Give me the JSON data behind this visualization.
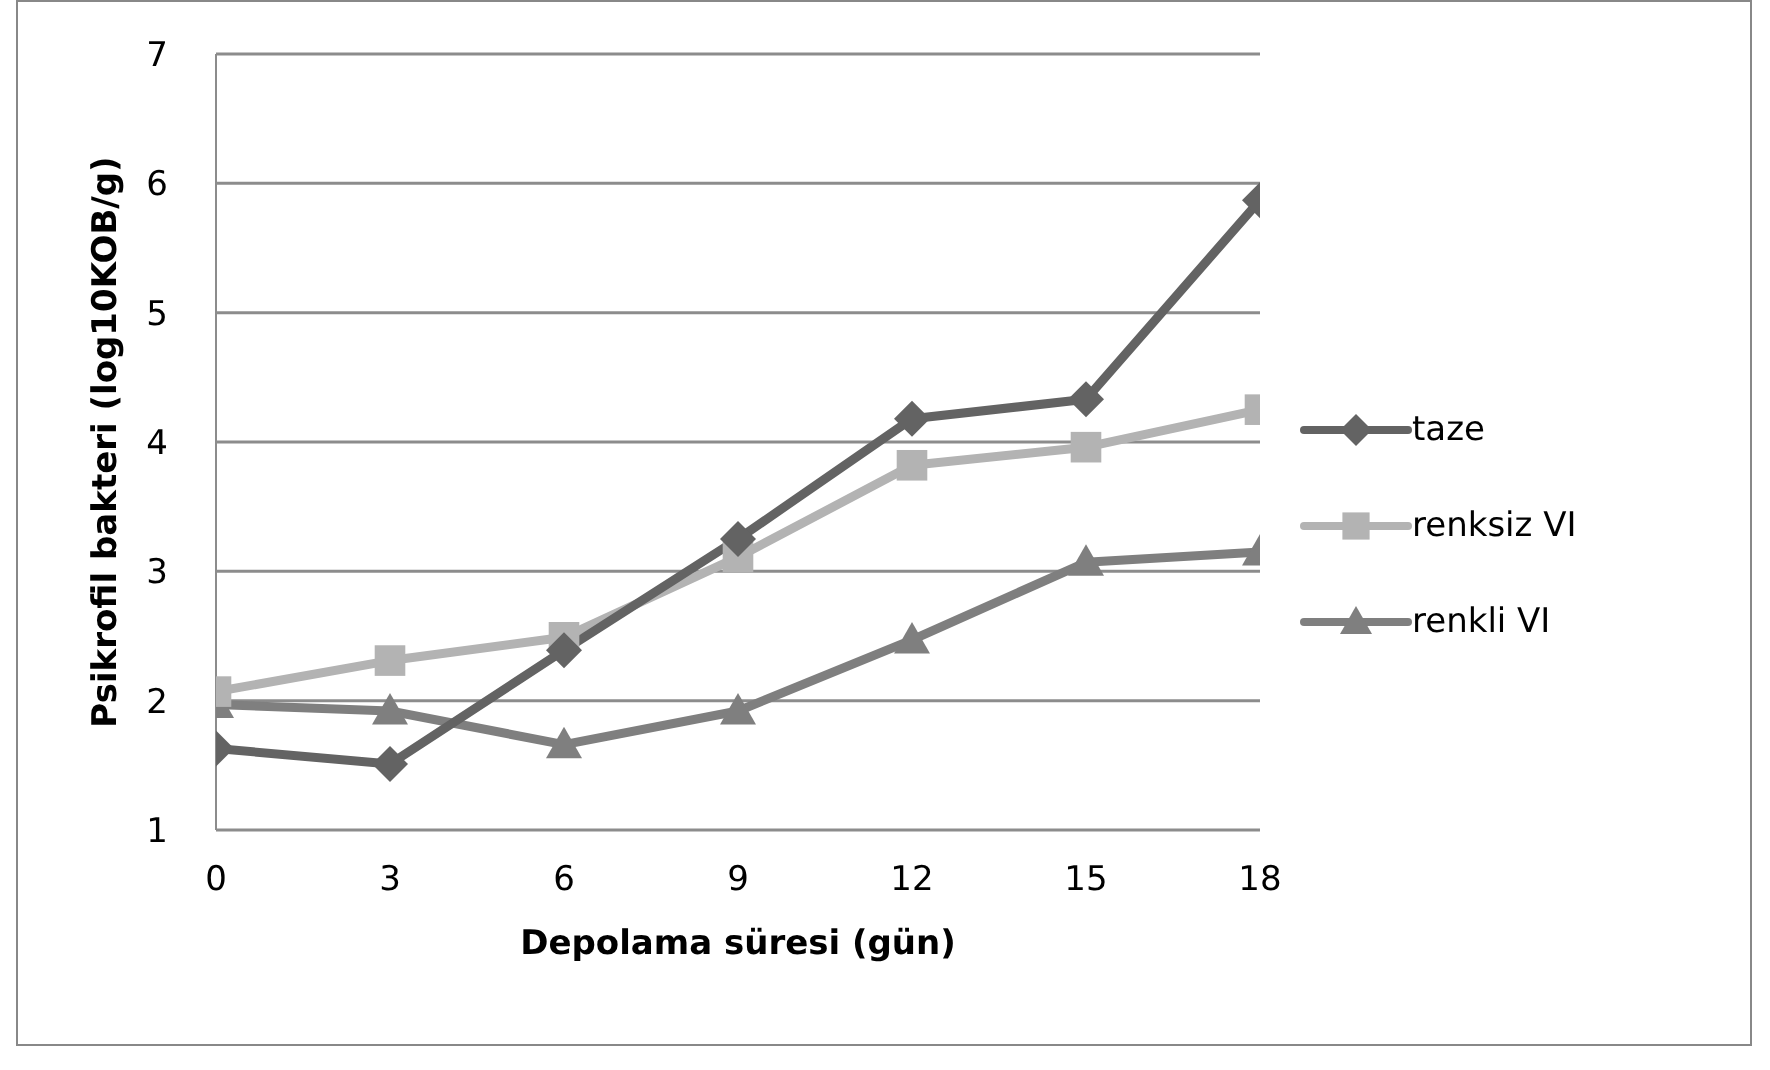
{
  "chart_data": {
    "type": "line",
    "xlabel": "Depolama süresi (gün)",
    "ylabel": "Psikrofil bakteri (log10KOB/g)",
    "x": [
      0,
      3,
      6,
      9,
      12,
      15,
      18
    ],
    "series": [
      {
        "name": "taze",
        "color": "#636363",
        "marker": "diamond",
        "values": [
          1.63,
          1.51,
          2.39,
          3.25,
          4.18,
          4.33,
          5.87
        ]
      },
      {
        "name": "renksiz VI",
        "color": "#b3b3b3",
        "marker": "square",
        "values": [
          2.07,
          2.31,
          2.49,
          3.11,
          3.82,
          3.96,
          4.25
        ]
      },
      {
        "name": "renkli VI",
        "color": "#7f7f7f",
        "marker": "triangle",
        "values": [
          1.97,
          1.92,
          1.66,
          1.92,
          2.47,
          3.07,
          3.15
        ]
      }
    ],
    "xlim": [
      0,
      18
    ],
    "xticks": [
      0,
      3,
      6,
      9,
      12,
      15,
      18
    ],
    "ylim": [
      1,
      7
    ],
    "yticks": [
      1,
      2,
      3,
      4,
      5,
      6,
      7
    ],
    "grid": "y",
    "legend": "right",
    "line_style": "solid"
  }
}
